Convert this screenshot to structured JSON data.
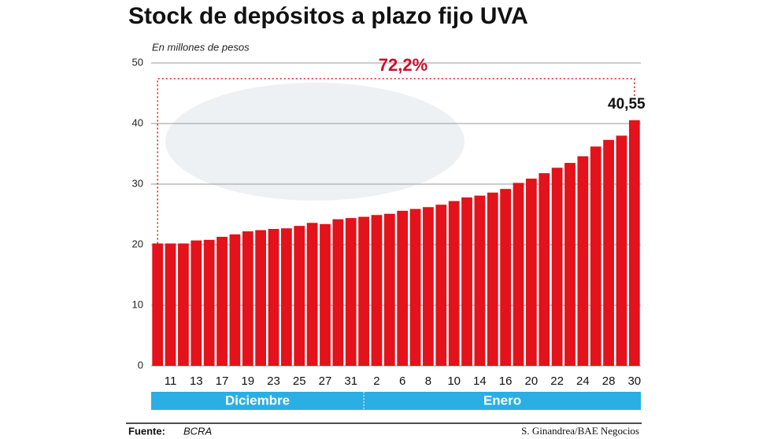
{
  "chart_data": {
    "type": "bar",
    "title": "Stock de depósitos a plazo fijo UVA",
    "y_label": "En millones de pesos",
    "annotation": "72,2%",
    "categories": [
      null,
      "11",
      null,
      "13",
      null,
      "17",
      null,
      "19",
      null,
      "23",
      null,
      "25",
      null,
      "27",
      null,
      "31",
      null,
      "2",
      null,
      "6",
      null,
      "8",
      null,
      "10",
      null,
      "14",
      null,
      "16",
      null,
      "20",
      null,
      "22",
      null,
      "24",
      null,
      "28",
      null,
      "30"
    ],
    "months": [
      "Diciembre",
      "Enero"
    ],
    "values": [
      20.2,
      20.2,
      20.2,
      20.7,
      20.8,
      21.3,
      21.7,
      22.2,
      22.4,
      22.6,
      22.7,
      23.1,
      23.6,
      23.4,
      24.2,
      24.4,
      24.6,
      24.9,
      25.1,
      25.6,
      25.9,
      26.2,
      26.6,
      27.2,
      27.8,
      28.1,
      28.6,
      29.2,
      30.2,
      30.9,
      31.8,
      32.7,
      33.5,
      34.6,
      36.2,
      37.3,
      38.0,
      40.55
    ],
    "value_labels": [
      null,
      null,
      null,
      null,
      null,
      null,
      null,
      null,
      null,
      null,
      null,
      null,
      null,
      null,
      null,
      null,
      null,
      null,
      null,
      null,
      null,
      null,
      null,
      null,
      null,
      null,
      null,
      null,
      null,
      null,
      null,
      null,
      null,
      null,
      null,
      null,
      null,
      "40,55"
    ],
    "color": "#e3121b",
    "ylim": [
      0,
      50
    ],
    "yticks": [
      0,
      10,
      20,
      30,
      40,
      50
    ],
    "grid": true,
    "source_label": "Fuente:",
    "source": "BCRA",
    "credit": "S. Ginandrea/BAE Negocios"
  }
}
